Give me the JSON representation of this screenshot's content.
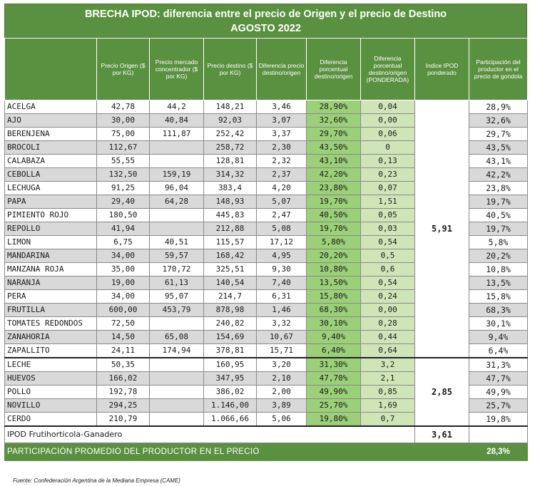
{
  "title": {
    "line1": "BRECHA IPOD: diferencia entre el precio de Origen y el precio de Destino",
    "line2": "AGOSTO 2022"
  },
  "headers": {
    "product": "",
    "origin": "Precio Origen ($ por KG)",
    "market": "Precio mercado concentrador ($ por KG)",
    "destination": "Precio destino ($ por KG)",
    "diff": "Diferencia precio destino/origen",
    "diff_pct": "Diferencia porcentual destino/origen",
    "diff_pct_pond": "Diferencia porcentual destino/origen (PONDERADA)",
    "ipod": "Indice IPOD ponderado",
    "participation": "Participación del productor en el precio de gondola"
  },
  "group1": {
    "ipod": "5,91",
    "rows": [
      {
        "name": "ACELGA",
        "origin": "42,78",
        "market": "44,2",
        "destination": "148,21",
        "diff": "3,46",
        "pct": "28,90%",
        "pond": "0,04",
        "part": "28,9%"
      },
      {
        "name": "AJO",
        "origin": "30,00",
        "market": "40,84",
        "destination": "92,03",
        "diff": "3,07",
        "pct": "32,60%",
        "pond": "0,00",
        "part": "32,6%"
      },
      {
        "name": "BERENJENA",
        "origin": "75,00",
        "market": "111,87",
        "destination": "252,42",
        "diff": "3,37",
        "pct": "29,70%",
        "pond": "0,06",
        "part": "29,7%"
      },
      {
        "name": "BROCOLI",
        "origin": "112,67",
        "market": "",
        "destination": "258,72",
        "diff": "2,30",
        "pct": "43,50%",
        "pond": "0",
        "part": "43,5%"
      },
      {
        "name": "CALABAZA",
        "origin": "55,55",
        "market": "",
        "destination": "128,81",
        "diff": "2,32",
        "pct": "43,10%",
        "pond": "0,13",
        "part": "43,1%"
      },
      {
        "name": "CEBOLLA",
        "origin": "132,50",
        "market": "159,19",
        "destination": "314,32",
        "diff": "2,37",
        "pct": "42,20%",
        "pond": "0,23",
        "part": "42,2%"
      },
      {
        "name": "LECHUGA",
        "origin": "91,25",
        "market": "96,04",
        "destination": "383,4",
        "diff": "4,20",
        "pct": "23,80%",
        "pond": "0,07",
        "part": "23,8%"
      },
      {
        "name": "PAPA",
        "origin": "29,40",
        "market": "64,28",
        "destination": "148,93",
        "diff": "5,07",
        "pct": "19,70%",
        "pond": "1,51",
        "part": "19,7%"
      },
      {
        "name": "PIMIENTO ROJO",
        "origin": "180,50",
        "market": "",
        "destination": "445,83",
        "diff": "2,47",
        "pct": "40,50%",
        "pond": "0,05",
        "part": "40,5%"
      },
      {
        "name": "REPOLLO",
        "origin": "41,94",
        "market": "",
        "destination": "212,88",
        "diff": "5,08",
        "pct": "19,70%",
        "pond": "0,03",
        "part": "19,7%"
      },
      {
        "name": "LIMON",
        "origin": "6,75",
        "market": "40,51",
        "destination": "115,57",
        "diff": "17,12",
        "pct": "5,80%",
        "pond": "0,54",
        "part": "5,8%"
      },
      {
        "name": "MANDARINA",
        "origin": "34,00",
        "market": "59,57",
        "destination": "168,42",
        "diff": "4,95",
        "pct": "20,20%",
        "pond": "0,5",
        "part": "20,2%"
      },
      {
        "name": "MANZANA ROJA",
        "origin": "35,00",
        "market": "170,72",
        "destination": "325,51",
        "diff": "9,30",
        "pct": "10,80%",
        "pond": "0,6",
        "part": "10,8%"
      },
      {
        "name": "NARANJA",
        "origin": "19,00",
        "market": "61,13",
        "destination": "140,54",
        "diff": "7,40",
        "pct": "13,50%",
        "pond": "0,54",
        "part": "13,5%"
      },
      {
        "name": "PERA",
        "origin": "34,00",
        "market": "95,07",
        "destination": "214,7",
        "diff": "6,31",
        "pct": "15,80%",
        "pond": "0,24",
        "part": "15,8%"
      },
      {
        "name": "FRUTILLA",
        "origin": "600,00",
        "market": "453,79",
        "destination": "878,98",
        "diff": "1,46",
        "pct": "68,30%",
        "pond": "0,00",
        "part": "68,3%"
      },
      {
        "name": "TOMATES REDONDOS",
        "origin": "72,50",
        "market": "",
        "destination": "240,82",
        "diff": "3,32",
        "pct": "30,10%",
        "pond": "0,28",
        "part": "30,1%"
      },
      {
        "name": "ZANAHORIA",
        "origin": "14,50",
        "market": "65,08",
        "destination": "154,69",
        "diff": "10,67",
        "pct": "9,40%",
        "pond": "0,44",
        "part": "9,4%"
      },
      {
        "name": "ZAPALLITO",
        "origin": "24,11",
        "market": "174,94",
        "destination": "378,81",
        "diff": "15,71",
        "pct": "6,40%",
        "pond": "0,64",
        "part": "6,4%"
      }
    ]
  },
  "group2": {
    "ipod": "2,85",
    "rows": [
      {
        "name": "LECHE",
        "origin": "50,35",
        "market": "",
        "destination": "160,95",
        "diff": "3,20",
        "pct": "31,30%",
        "pond": "3,2",
        "part": "31,3%"
      },
      {
        "name": "HUEVOS",
        "origin": "166,02",
        "market": "",
        "destination": "347,95",
        "diff": "2,10",
        "pct": "47,70%",
        "pond": "2,1",
        "part": "47,7%"
      },
      {
        "name": "POLLO",
        "origin": "192,78",
        "market": "",
        "destination": "386,02",
        "diff": "2,00",
        "pct": "49,90%",
        "pond": "0,85",
        "part": "49,9%"
      },
      {
        "name": "NOVILLO",
        "origin": "294,25",
        "market": "",
        "destination": "1.146,00",
        "diff": "3,89",
        "pct": "25,70%",
        "pond": "1,69",
        "part": "25,7%"
      },
      {
        "name": "CERDO",
        "origin": "210,79",
        "market": "",
        "destination": "1.066,66",
        "diff": "5,06",
        "pct": "19,80%",
        "pond": "0,7",
        "part": "19,8%"
      }
    ]
  },
  "summary": {
    "ipod_label": "IPOD Frutihorticola-Ganadero",
    "ipod_value": "3,61",
    "avg_label": "PARTICIPACIÓN PROMEDIO DEL PRODUCTOR EN EL PRECIO",
    "avg_value": "28,3%"
  },
  "source": "Fuente: Confederación Argentina de la Mediana Empresa (CAME)",
  "colors": {
    "header_green": "#5a9140",
    "pct_green": "#9bcf78",
    "pond_green": "#cfe5b8",
    "alt_row_gray": "#d9d9d9"
  }
}
